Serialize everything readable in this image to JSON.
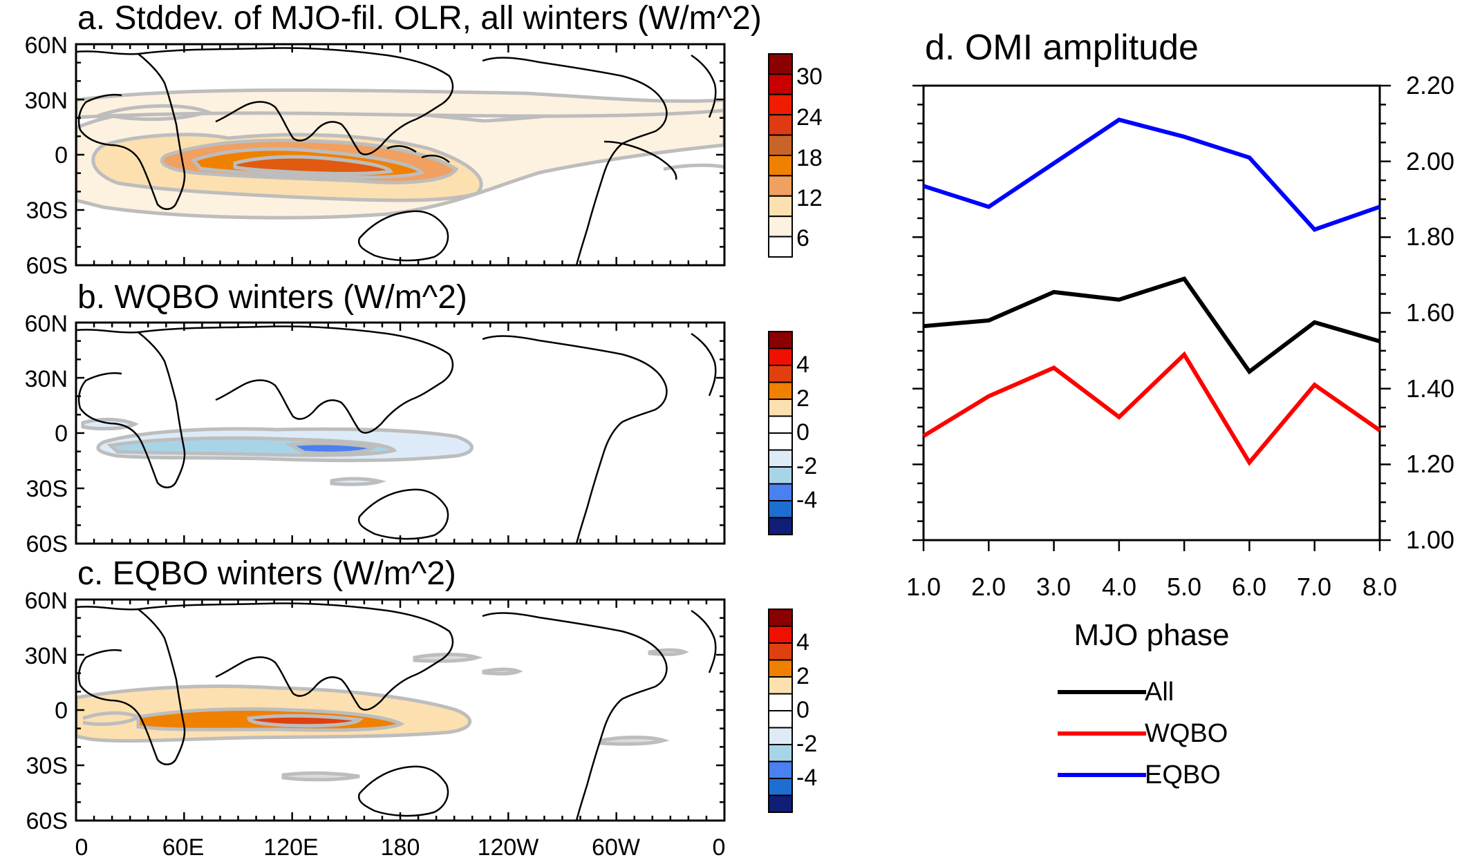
{
  "map_axes": {
    "lat_labels": [
      "60N",
      "30N",
      "0",
      "30S",
      "60S"
    ],
    "lon_labels": [
      "0",
      "60E",
      "120E",
      "180",
      "120W",
      "60W",
      "0"
    ]
  },
  "panels": [
    {
      "title": "a. Stddev. of MJO-fil. OLR, all winters (W/m^2)",
      "colorbar": {
        "labels": [
          "30",
          "24",
          "18",
          "12",
          "6"
        ],
        "colors": [
          "#8b0000",
          "#c80000",
          "#f01c00",
          "#e03a14",
          "#c86428",
          "#f08000",
          "#f0a060",
          "#fde0b0",
          "#fdf1e0",
          "#ffffff"
        ]
      }
    },
    {
      "title": "b. WQBO winters (W/m^2)",
      "colorbar": {
        "labels": [
          "4",
          "2",
          "0",
          "-2",
          "-4"
        ],
        "colors": [
          "#8b0000",
          "#f01000",
          "#e04010",
          "#f08000",
          "#fde0b0",
          "#ffffff",
          "#ffffff",
          "#dcebf7",
          "#a8d4e8",
          "#4a80f0",
          "#1e6ed2",
          "#101e78"
        ]
      }
    },
    {
      "title": "c. EQBO winters (W/m^2)",
      "colorbar": {
        "labels": [
          "4",
          "2",
          "0",
          "-2",
          "-4"
        ],
        "colors": [
          "#8b0000",
          "#f01000",
          "#e04010",
          "#f08000",
          "#fde0b0",
          "#ffffff",
          "#ffffff",
          "#dcebf7",
          "#a8d4e8",
          "#4a80f0",
          "#1e6ed2",
          "#101e78"
        ]
      }
    }
  ],
  "chart_data": {
    "type": "line",
    "title": "d. OMI amplitude",
    "xlabel": "MJO phase",
    "ylabel": "",
    "x": [
      1,
      2,
      3,
      4,
      5,
      6,
      7,
      8
    ],
    "x_tick_labels": [
      "1.0",
      "2.0",
      "3.0",
      "4.0",
      "5.0",
      "6.0",
      "7.0",
      "8.0"
    ],
    "y_tick_labels": [
      "2.20",
      "2.00",
      "1.80",
      "1.60",
      "1.40",
      "1.20",
      "1.00"
    ],
    "xlim": [
      1,
      8
    ],
    "ylim": [
      1.0,
      2.2
    ],
    "y_axis_side": "right",
    "grid": false,
    "legend_position": "bottom",
    "series": [
      {
        "name": "All",
        "color": "#000000",
        "values": [
          1.565,
          1.58,
          1.655,
          1.635,
          1.69,
          1.445,
          1.575,
          1.525
        ]
      },
      {
        "name": "WQBO",
        "color": "#ff0000",
        "values": [
          1.275,
          1.38,
          1.455,
          1.325,
          1.49,
          1.205,
          1.41,
          1.29
        ]
      },
      {
        "name": "EQBO",
        "color": "#0000ff",
        "values": [
          1.935,
          1.88,
          1.995,
          2.11,
          2.065,
          2.01,
          1.82,
          1.88
        ]
      }
    ]
  }
}
